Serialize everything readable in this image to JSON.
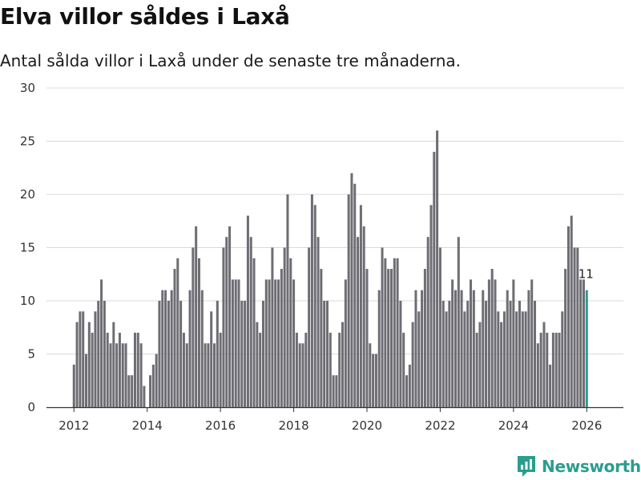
{
  "title": "Elva villor såldes i Laxå",
  "subtitle": "Antal sålda villor i Laxå under de senaste tre månaderna.",
  "brand": {
    "name": "Newsworthy",
    "icon": "newsworthy-logo-icon"
  },
  "colors": {
    "bar": "#6e6d73",
    "highlight": "#2a9d8f",
    "grid": "#d9d9d9",
    "axis": "#333333"
  },
  "chart_data": {
    "type": "bar",
    "title": "Elva villor såldes i Laxå",
    "xlabel": "",
    "ylabel": "",
    "ylim": [
      0,
      30
    ],
    "yticks": [
      0,
      5,
      10,
      15,
      20,
      25,
      30
    ],
    "xticks": [
      "2012",
      "2014",
      "2016",
      "2018",
      "2020",
      "2022",
      "2024",
      "2026"
    ],
    "xrange": [
      2011.25,
      2027.0
    ],
    "start_year": 2012,
    "start_month": 1,
    "highlight_label": "11",
    "values": [
      4,
      8,
      9,
      9,
      5,
      8,
      7,
      9,
      10,
      12,
      10,
      7,
      6,
      8,
      6,
      7,
      6,
      6,
      3,
      3,
      7,
      7,
      6,
      2,
      0,
      3,
      4,
      5,
      10,
      11,
      11,
      10,
      11,
      13,
      14,
      10,
      7,
      6,
      11,
      15,
      17,
      14,
      11,
      6,
      6,
      9,
      6,
      10,
      7,
      15,
      16,
      17,
      12,
      12,
      12,
      10,
      10,
      18,
      16,
      14,
      8,
      7,
      10,
      12,
      12,
      15,
      12,
      12,
      13,
      15,
      20,
      14,
      12,
      7,
      6,
      6,
      7,
      15,
      20,
      19,
      16,
      13,
      10,
      10,
      7,
      3,
      3,
      7,
      8,
      12,
      20,
      22,
      21,
      16,
      19,
      17,
      13,
      6,
      5,
      5,
      11,
      15,
      14,
      13,
      13,
      14,
      14,
      10,
      7,
      3,
      4,
      8,
      11,
      9,
      11,
      13,
      16,
      19,
      24,
      26,
      15,
      10,
      9,
      10,
      12,
      11,
      16,
      11,
      9,
      10,
      12,
      11,
      7,
      8,
      11,
      10,
      12,
      13,
      12,
      9,
      8,
      9,
      11,
      10,
      12,
      9,
      10,
      9,
      9,
      11,
      12,
      10,
      6,
      7,
      8,
      7,
      4,
      7,
      7,
      7,
      9,
      13,
      17,
      18,
      15,
      15,
      12,
      12,
      11
    ]
  }
}
